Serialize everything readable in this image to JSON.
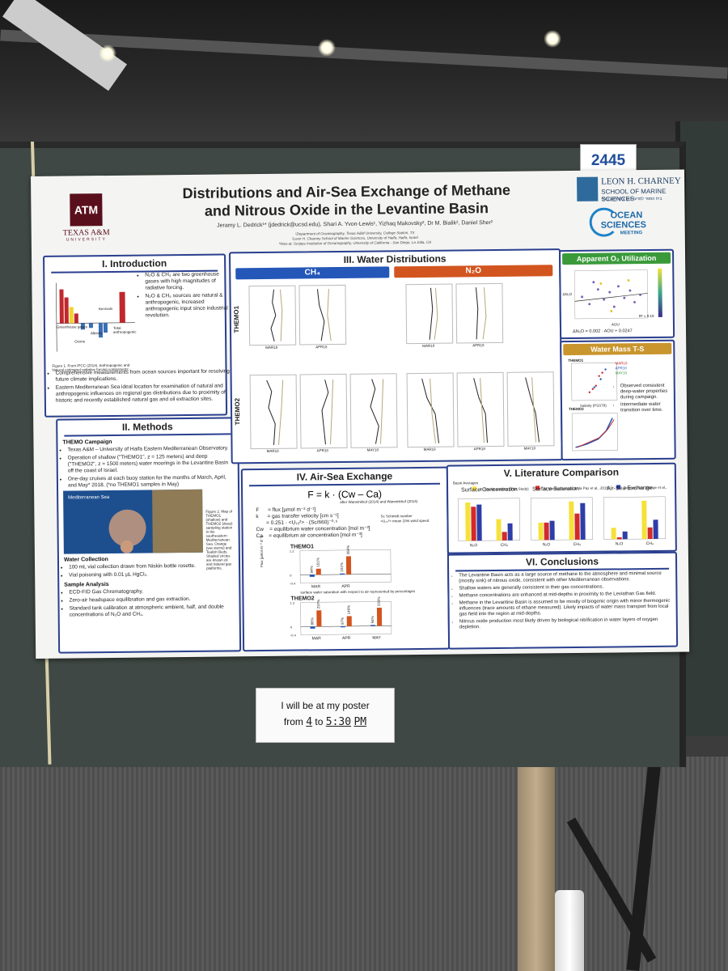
{
  "scene": {
    "poster_number": "2445",
    "sign": {
      "line1": "I will be at my poster",
      "from_word": "from",
      "from_time": "4",
      "to_word": "to",
      "to_time": "5:30",
      "suffix": "PM"
    }
  },
  "poster": {
    "title_line1": "Distributions and Air-Sea Exchange of Methane",
    "title_line2": "and Nitrous Oxide in the Levantine Basin",
    "authors": "Jeramy L. Dedrick¹* (jdedrick@ucsd.edu), Shari A. Yvon-Lewis¹, Yizhaq Makovsky², Dr M. Bialik², Daniel Sher²",
    "affiliations": [
      "¹Department of Oceanography, Texas A&M University, College Station, TX",
      "²Leon H. Charney School of Marine Sciences, University of Haifa, Haifa, Israel",
      "*Now at: Scripps Institution of Oceanography, University of California - San Diego, La Jolla, CA"
    ],
    "logos": {
      "tamu_mark": "ATM",
      "tamu_name": "TEXAS A&M",
      "tamu_sub": "UNIVERSITY",
      "charney_name": "LEON H. CHARNEY",
      "charney_school": "SCHOOL OF MARINE SCIENCES",
      "charney_hebrew": "בית הספר למדעי הים ע\"ש לאון צ'רני",
      "osm_line1": "OCEAN",
      "osm_line2": "SCIENCES",
      "osm_line3": "MEETING"
    },
    "intro": {
      "title": "I. Introduction",
      "bullets": [
        "N₂O & CH₄ are two greenhouse gases with high magnitudes of radiative forcing.",
        "N₂O & CH₄ sources are natural & anthropogenic, increased anthropogenic input since industrial revolution.",
        "Comprehensive measurements from ocean sources important for resolving future climate implications.",
        "Eastern Mediterranean Sea ideal location for examination of natural and anthropogenic influences on regional gas distributions due to proximity of historic and recently established natural gas and oil extraction sites."
      ],
      "fig_caption": "Figure 1. From IPCC (2014). Anthropogenic and Natural estimated radiative forcing components.",
      "fig_labels": [
        "Greenhouse gases",
        "Ozone",
        "Albedo",
        "Aerosols",
        "Total anthropogenic"
      ]
    },
    "methods": {
      "title": "II. Methods",
      "h_campaign": "THEMO Campaign",
      "campaign": [
        "Texas A&M – University of Haifa Eastern Mediterranean Observatory.",
        "Operation of shallow (\"THEMO1\", z = 125 meters) and deep (\"THEMO2\", z = 1500 meters) water moorings in the Levantine Basin off the coast of Israel.",
        "One-day cruises at each buoy station for the months of March, April, and May* 2018. (*no THEMO1 samples in May)"
      ],
      "map_label": "Mediterranean Sea",
      "map_caption": "Figure 2. Map of THEMO1 (shallow) and THEMO2 (deep) sampling station in the southeastern Mediterranean Sea. Orange (ww stems) and Tealish Beds. Shaded circles are known oil and natural gas platforms.",
      "h_water": "Water Collection",
      "water": [
        "100 mL vial collection drawn from Niskin bottle rosette.",
        "Vial poisoning with 0.01 µL HgCl₂."
      ],
      "h_sample": "Sample Analysis",
      "sample": [
        "ECD-FID Gas Chromatography.",
        "Zero-air headspace equilibration and gas extraction.",
        "Standard tank calibration at atmospheric ambient, half, and double concentrations of N₂O and CH₄."
      ]
    },
    "water_dist": {
      "title": "III. Water Distributions",
      "ch4_head": "CH₄",
      "n2o_head": "N₂O",
      "row1": "THEMO1",
      "row2": "THEMO2",
      "months": [
        "MAR18",
        "APR18",
        "MAY18"
      ]
    },
    "aou": {
      "title": "Apparent O₂ Utilization",
      "eq": "ΔN₂O = 0.002 · AOU + 0.0247",
      "r2": "R² = 0.19",
      "xlabel": "AOU",
      "ylabel": "ΔN₂O"
    },
    "ts": {
      "title": "Water Mass T-S",
      "t1": "THEMO1",
      "t2": "THEMO2",
      "legend": [
        "MAR18",
        "APR18",
        "MAY18"
      ],
      "xlabel": "Salinity (PSS78)",
      "bullets": [
        "Observed consistent deep-water properties during campaign.",
        "Intermediate water transition over time."
      ]
    },
    "airsea": {
      "title": "IV. Air-Sea Exchange",
      "formula": "F = k · (Cw – Ca)",
      "formula_ref": "after Wanninkhof (2014) and Wanninkhof (2014)",
      "defs": [
        "F      = flux [µmol m⁻² d⁻¹]",
        "k      = gas transfer velocity [cm s⁻¹]",
        "       = 0.251 · <U₁₀²> · (Sc/660)⁻⁰·⁵",
        "Cw    = equilibrium water concentration [mol m⁻³]",
        "Ca    = equilibrium air concentration [mol m⁻³]"
      ],
      "sc_note": "Sc   Schmidt number",
      "u_note": "<U₁₀²>  mean 10m wind speed",
      "themo1": "THEMO1",
      "themo2": "THEMO2",
      "months": [
        "MAR",
        "APR",
        "MAY"
      ],
      "ylabel": "Flux [µmol m⁻² d⁻¹]",
      "note": "surface water saturation with respect to air represented by percentages"
    },
    "lit": {
      "title": "V. Literature Comparison",
      "basin_label": "Basin Averages",
      "legend": [
        "E. Mediterranean (This Study)",
        "W. Mediterranean (de la Paz et al., 2015)",
        "Aegean Sea (Bange et al., 1996)"
      ],
      "sub1": "Surface Concentration",
      "sub2": "Surface Saturation",
      "sub3": "Air-Sea Exchange",
      "gases": [
        "N₂O",
        "CH₄"
      ]
    },
    "concl": {
      "title": "VI. Conclusions",
      "bullets": [
        "The Levantine Basin acts as a large source of methane to the atmosphere and minimal source (mostly sink) of nitrous oxide, consistent with other Mediterranean observations.",
        "Shallow waters are generally consistent in their gas concentrations.",
        "Methane concentrations are enhanced at mid-depths in proximity to the Leviathan Gas field.",
        "Methane in the Levantine Basin is assumed to be mostly of biogenic origin with minor thermogenic influences (trace amounts of ethane measured). Likely impacts of water mass transport from local gas field into the region at mid-depths.",
        "Nitrous oxide production most likely driven by biological nitrification in water layers of oxygen depletion."
      ]
    }
  },
  "chart_data": [
    {
      "type": "bar",
      "title": "THEMO1",
      "categories": [
        "MAR",
        "APR"
      ],
      "series": [
        {
          "values": [
            -0.1,
            0.05
          ],
          "labels": [
            "94%",
            "101%"
          ]
        },
        {
          "values": [
            0.3,
            0.9
          ],
          "labels": [
            "151%",
            "266%"
          ]
        }
      ],
      "ylim": [
        -0.4,
        1.2
      ],
      "ylabel": "Flux [µmol m⁻² d⁻¹]"
    },
    {
      "type": "bar",
      "title": "THEMO2",
      "categories": [
        "MAR",
        "APR",
        "MAY"
      ],
      "series": [
        {
          "values": [
            -0.1,
            -0.05,
            0.05
          ],
          "labels": [
            "86%",
            "97%",
            "94%"
          ]
        },
        {
          "values": [
            0.8,
            0.5,
            0.9
          ],
          "labels": [
            "237%",
            "146%",
            "223%"
          ]
        }
      ],
      "ylim": [
        -0.4,
        1.2
      ],
      "ylabel": "Flux [µmol m⁻² d⁻¹]"
    },
    {
      "type": "bar",
      "title": "Surface Concentration",
      "categories": [
        "N₂O",
        "CH₄"
      ],
      "series": [
        {
          "name": "E. Mediterranean (This Study)",
          "values": [
            9,
            5
          ]
        },
        {
          "name": "W. Mediterranean (de la Paz et al., 2015)",
          "values": [
            8,
            2
          ]
        },
        {
          "name": "Aegean Sea (Bange et al., 1996)",
          "values": [
            8.5,
            4
          ]
        }
      ]
    },
    {
      "type": "bar",
      "title": "Surface Saturation",
      "categories": [
        "N₂O",
        "CH₄"
      ],
      "series": [
        {
          "name": "E. Mediterranean (This Study)",
          "values": [
            100,
            220
          ]
        },
        {
          "name": "W. Mediterranean (de la Paz et al., 2015)",
          "values": [
            100,
            150
          ]
        },
        {
          "name": "Aegean Sea (Bange et al., 1996)",
          "values": [
            110,
            210
          ]
        }
      ]
    },
    {
      "type": "bar",
      "title": "Air-Sea Exchange",
      "categories": [
        "N₂O",
        "CH₄"
      ],
      "series": [
        {
          "name": "E. Mediterranean (This Study)",
          "values": [
            0.3,
            1.0
          ]
        },
        {
          "name": "W. Mediterranean (de la Paz et al., 2015)",
          "values": [
            0.05,
            0.3
          ]
        },
        {
          "name": "Aegean Sea (Bange et al., 1996)",
          "values": [
            0.2,
            0.5
          ]
        }
      ]
    }
  ]
}
